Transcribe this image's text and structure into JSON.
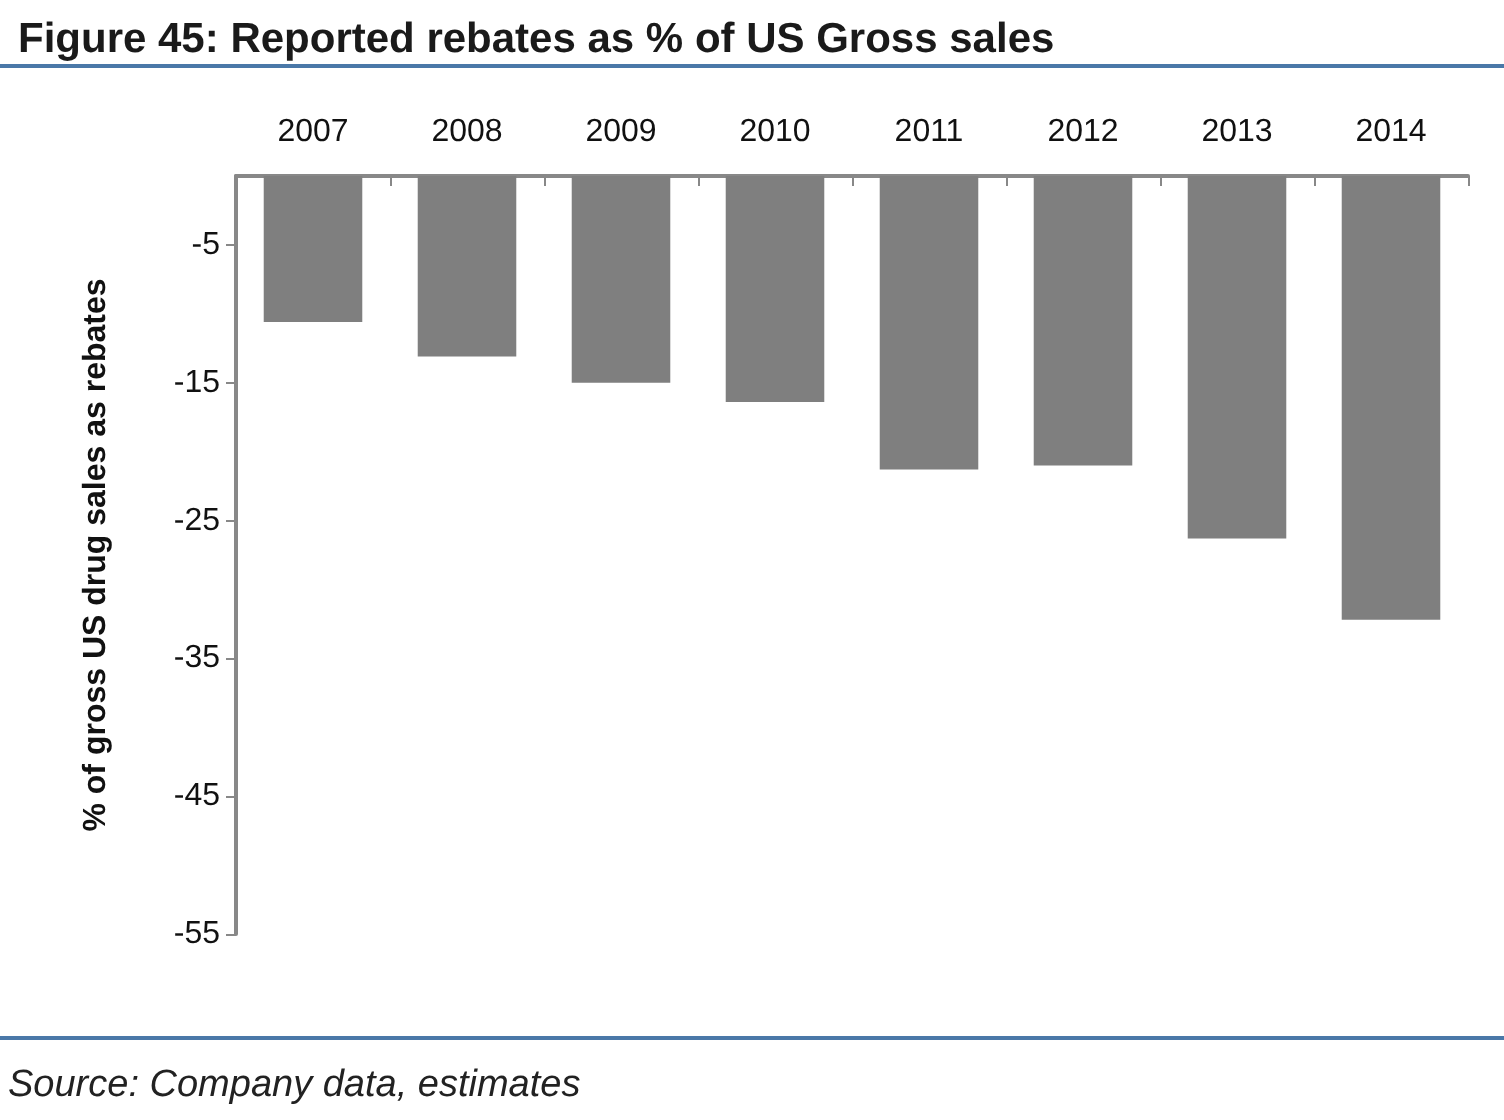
{
  "chart_data": {
    "type": "bar",
    "title": "Figure 45: Reported rebates as % of US Gross sales",
    "ylabel": "% of gross US drug sales as rebates",
    "categories": [
      "2007",
      "2008",
      "2009",
      "2010",
      "2011",
      "2012",
      "2013",
      "2014"
    ],
    "values": [
      -10.6,
      -13.1,
      -15.0,
      -16.4,
      -21.3,
      -21.0,
      -26.3,
      -32.2
    ],
    "color": "#7f7f7f",
    "ylim": [
      -55,
      0
    ],
    "yticks": [
      -5,
      -15,
      -25,
      -35,
      -45,
      -55
    ],
    "grid": false,
    "annotations": [
      "Source: Company data, estimates"
    ]
  }
}
